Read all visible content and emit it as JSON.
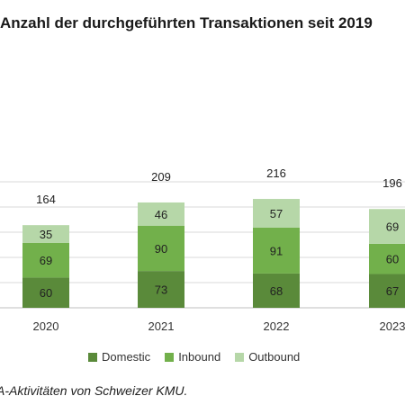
{
  "chart_data": {
    "type": "bar",
    "stacked": true,
    "title": "Anzahl der durchgeführten Transaktionen seit 2019",
    "categories": [
      "2020",
      "2021",
      "2022",
      "2023"
    ],
    "totals": [
      164,
      209,
      216,
      196
    ],
    "series": [
      {
        "name": "Domestic",
        "values": [
          60,
          73,
          68,
          67
        ],
        "color": "#5a8a3a"
      },
      {
        "name": "Inbound",
        "values": [
          69,
          90,
          91,
          60
        ],
        "color": "#72b04b"
      },
      {
        "name": "Outbound",
        "values": [
          35,
          46,
          57,
          69
        ],
        "color": "#b6d7a8"
      }
    ],
    "ylim": [
      0,
      250
    ],
    "grid": true,
    "legend": "bottom"
  },
  "caption": "A-Aktivitäten von Schweizer KMU."
}
